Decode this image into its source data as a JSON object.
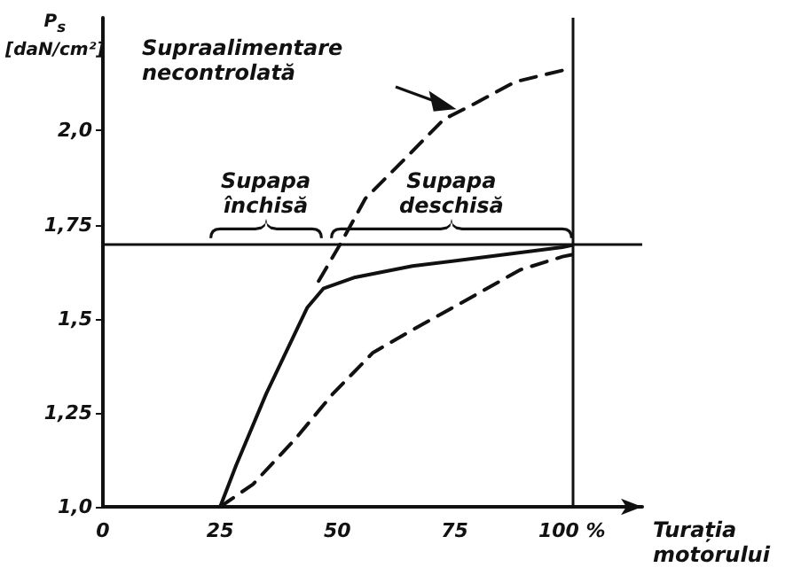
{
  "chart_data": {
    "type": "line",
    "xlabel": "Turația motorului",
    "ylabel": "P$_{s}$ [daN/cm²]",
    "x": [
      25,
      28.4,
      34.8,
      41.3,
      43.6,
      47,
      53.8,
      66,
      79,
      98,
      100
    ],
    "series": [
      {
        "color": "#111111",
        "line_style": "solid",
        "values": [
          1.0,
          1.11,
          1.3,
          1.47,
          1.53,
          1.58,
          1.61,
          1.64,
          1.66,
          1.69,
          1.695
        ]
      },
      {
        "color": "#111111",
        "line_style": "dashed",
        "x": [
          25,
          32,
          41,
          49,
          57.6,
          66,
          79,
          89,
          98,
          100
        ],
        "values": [
          1.0,
          1.06,
          1.18,
          1.3,
          1.41,
          1.47,
          1.56,
          1.63,
          1.665,
          1.67
        ]
      },
      {
        "color": "#111111",
        "line_style": "dashed",
        "x": [
          46,
          50.7,
          56,
          64,
          72.7,
          79,
          88,
          98,
          100
        ],
        "values": [
          1.6,
          1.7,
          1.82,
          1.92,
          2.03,
          2.07,
          2.13,
          2.16,
          2.165
        ]
      }
    ],
    "xlim": [
      0,
      115
    ],
    "ylim": [
      1.0,
      2.3
    ],
    "xticks": [
      0,
      25,
      50,
      75,
      {
        "value": 100,
        "label": "100 %"
      }
    ],
    "yticks": [
      {
        "value": 1.0,
        "label": "1,0"
      },
      {
        "value": 1.25,
        "label": "1,25"
      },
      {
        "value": 1.5,
        "label": "1,5"
      },
      {
        "value": 1.75,
        "label": "1,75"
      },
      {
        "value": 2.0,
        "label": "2,0"
      }
    ],
    "ref_lines": [
      {
        "axis": "y",
        "value": 1.7,
        "color": "#111111"
      },
      {
        "axis": "x",
        "value": 100,
        "color": "#111111"
      }
    ],
    "annotations": [
      "Supraalimentare necontrolată",
      "Supapa închisă",
      "Supapa deschisă"
    ],
    "grid": false,
    "marker": "none"
  }
}
